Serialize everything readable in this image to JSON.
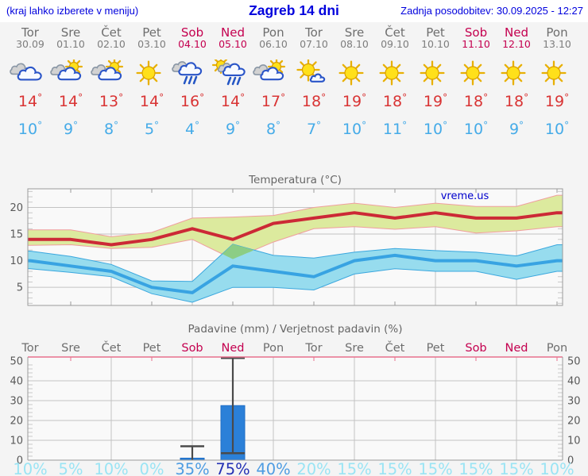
{
  "header": {
    "left_note": "(kraj lahko izberete v meniju)",
    "title": "Zagreb 14 dni",
    "updated": "Zadnja posodobitev: 30.09.2025 - 12:27"
  },
  "degree_symbol": "°",
  "colors": {
    "header_text": "#0000dd",
    "day_gray": "#6e6e6e",
    "weekend_red": "#c4004f",
    "tmax_red": "#d93434",
    "tmin_blue": "#45abe8",
    "grid": "#c3c3c3",
    "frame": "#9a9a9a",
    "axis_text": "#595959",
    "title_text": "#666666",
    "precip_top_border": "#e8708c",
    "pop_low": "#9ae4f4",
    "pop_med": "#4e9ce2",
    "pop_high": "#2431b4",
    "watermark_blue": "#0000cc"
  },
  "days": [
    {
      "name": "Tor",
      "date": "30.09",
      "icon": "cloudy",
      "tmax": "14",
      "tmin": "10",
      "weekend": false
    },
    {
      "name": "Sre",
      "date": "01.10",
      "icon": "sun-cloud",
      "tmax": "14",
      "tmin": "9",
      "weekend": false
    },
    {
      "name": "Čet",
      "date": "02.10",
      "icon": "sun-cloud",
      "tmax": "13",
      "tmin": "8",
      "weekend": false
    },
    {
      "name": "Pet",
      "date": "03.10",
      "icon": "sunny",
      "tmax": "14",
      "tmin": "5",
      "weekend": false
    },
    {
      "name": "Sob",
      "date": "04.10",
      "icon": "rain",
      "tmax": "16",
      "tmin": "4",
      "weekend": true
    },
    {
      "name": "Ned",
      "date": "05.10",
      "icon": "sun-rain",
      "tmax": "14",
      "tmin": "9",
      "weekend": true
    },
    {
      "name": "Pon",
      "date": "06.10",
      "icon": "sun-cloud",
      "tmax": "17",
      "tmin": "8",
      "weekend": false
    },
    {
      "name": "Tor",
      "date": "07.10",
      "icon": "sun-small-cloud",
      "tmax": "18",
      "tmin": "7",
      "weekend": false
    },
    {
      "name": "Sre",
      "date": "08.10",
      "icon": "sunny",
      "tmax": "19",
      "tmin": "10",
      "weekend": false
    },
    {
      "name": "Čet",
      "date": "09.10",
      "icon": "sunny",
      "tmax": "18",
      "tmin": "11",
      "weekend": false
    },
    {
      "name": "Pet",
      "date": "10.10",
      "icon": "sunny",
      "tmax": "19",
      "tmin": "10",
      "weekend": false
    },
    {
      "name": "Sob",
      "date": "11.10",
      "icon": "sunny",
      "tmax": "18",
      "tmin": "10",
      "weekend": true
    },
    {
      "name": "Ned",
      "date": "12.10",
      "icon": "sunny",
      "tmax": "18",
      "tmin": "9",
      "weekend": true
    },
    {
      "name": "Pon",
      "date": "13.10",
      "icon": "sunny",
      "tmax": "19",
      "tmin": "10",
      "weekend": false
    }
  ],
  "chart_data": [
    {
      "type": "line",
      "title": "Temperatura (°C)",
      "watermark": "vreme.us",
      "categories": [
        "Tor",
        "Sre",
        "Čet",
        "Pet",
        "Sob",
        "Ned",
        "Pon",
        "Tor",
        "Sre",
        "Čet",
        "Pet",
        "Sob",
        "Ned",
        "Pon"
      ],
      "ylim": [
        1.6,
        23.5
      ],
      "yticks": [
        5,
        10,
        15,
        20
      ],
      "grid": true,
      "legend_position": "none",
      "series": [
        {
          "name": "max-temperature",
          "color": "#cc2936",
          "width": 4,
          "values": [
            14,
            14,
            13,
            14,
            16,
            14,
            17,
            18,
            19,
            18,
            19,
            18,
            18,
            19
          ]
        },
        {
          "name": "min-temperature",
          "color": "#38a3e2",
          "width": 4,
          "values": [
            10,
            9,
            8,
            5,
            4,
            9,
            8,
            7,
            10,
            11,
            10,
            10,
            9,
            10
          ]
        }
      ],
      "bands": [
        {
          "name": "max-temperature-range",
          "fill": "#dcea9e",
          "edge": "#f09e9e",
          "upper": [
            15.8,
            15.8,
            14.5,
            15.3,
            18.0,
            18.2,
            18.5,
            20.0,
            20.8,
            20.0,
            20.8,
            20.2,
            20.2,
            22.3
          ],
          "lower": [
            12.9,
            13.0,
            12.3,
            12.5,
            14.0,
            10.3,
            13.5,
            16.0,
            16.4,
            15.9,
            16.4,
            15.2,
            15.6,
            16.4
          ]
        },
        {
          "name": "min-temperature-range",
          "fill": "#97dcee",
          "edge": "#3aa7de",
          "upper": [
            11.8,
            10.8,
            9.3,
            6.2,
            6.1,
            13.1,
            11.0,
            10.5,
            11.6,
            12.3,
            11.9,
            11.6,
            10.9,
            13.0
          ],
          "lower": [
            8.5,
            7.8,
            7.0,
            3.8,
            2.2,
            5.0,
            5.0,
            4.5,
            7.5,
            8.5,
            8.0,
            8.0,
            6.5,
            8.0
          ]
        }
      ],
      "overlap_fill": "#8ccd85"
    },
    {
      "type": "bar",
      "title": "Padavine (mm) / Verjetnost padavin (%)",
      "categories": [
        "Tor",
        "Sre",
        "Čet",
        "Pet",
        "Sob",
        "Ned",
        "Pon",
        "Tor",
        "Sre",
        "Čet",
        "Pet",
        "Sob",
        "Ned",
        "Pon"
      ],
      "values": [
        0,
        0,
        0,
        0,
        1,
        27.5,
        0,
        0,
        0,
        0,
        0,
        0,
        0,
        0
      ],
      "whiskers": [
        null,
        null,
        null,
        null,
        {
          "low": 0,
          "high": 7
        },
        {
          "low": 3.5,
          "high": 51.5
        },
        null,
        null,
        null,
        null,
        null,
        null,
        null,
        null
      ],
      "probabilities": [
        "10%",
        "5%",
        "10%",
        "0%",
        "35%",
        "75%",
        "40%",
        "20%",
        "15%",
        "15%",
        "15%",
        "15%",
        "15%",
        "10%"
      ],
      "ylim": [
        0,
        52
      ],
      "yticks": [
        0,
        10,
        20,
        30,
        40,
        50
      ],
      "grid": true,
      "bar_color": "#2b80d8",
      "bar_edge": "#1f6ec6",
      "whisker_color": "#4a4a4a"
    }
  ]
}
